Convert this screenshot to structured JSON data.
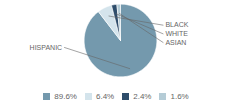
{
  "chart_data": {
    "type": "pie",
    "categories": [
      "HISPANIC",
      "BLACK",
      "WHITE",
      "ASIAN"
    ],
    "values": [
      89.6,
      6.4,
      2.4,
      1.6
    ],
    "value_labels": [
      "89.6%",
      "6.4%",
      "2.4%",
      "1.6%"
    ],
    "colors": [
      "#7499ad",
      "#d4e4ec",
      "#2e4d6b",
      "#b5ccd6"
    ],
    "legend": "bottom"
  }
}
